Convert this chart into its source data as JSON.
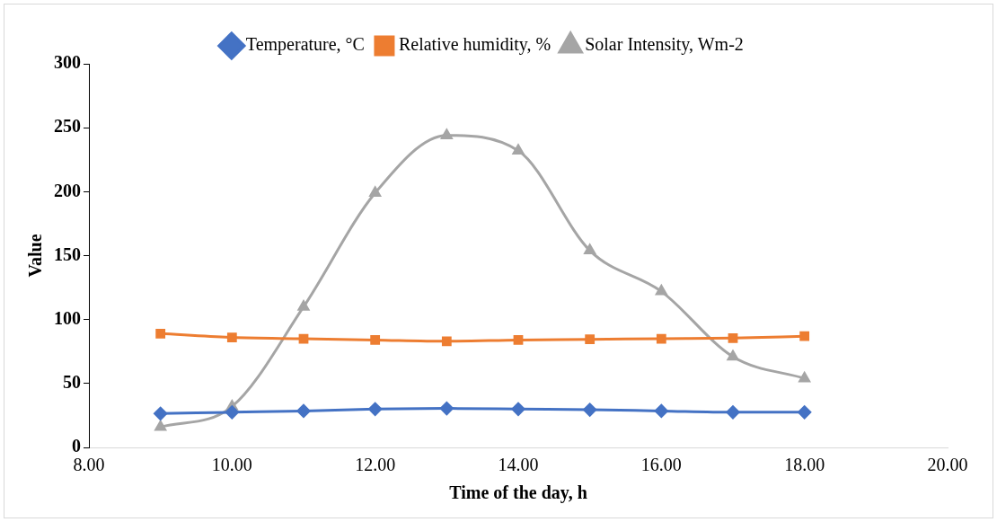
{
  "chart_data": {
    "type": "line",
    "xlabel": "Time of the day, h",
    "ylabel": "Value",
    "x": [
      9,
      10,
      11,
      12,
      13,
      14,
      15,
      16,
      17,
      18
    ],
    "series": [
      {
        "name": "Temperature, °C",
        "color": "#4472c4",
        "marker": "diamond",
        "values": [
          26.5,
          27.5,
          28.5,
          30,
          30.5,
          30,
          29.5,
          28.5,
          27.5,
          27.5
        ]
      },
      {
        "name": "Relative humidity, %",
        "color": "#ed7d31",
        "marker": "square",
        "values": [
          89,
          86,
          85,
          84,
          83,
          84,
          84.5,
          85,
          85.5,
          87
        ]
      },
      {
        "name": "Solar Intensity, Wm-2",
        "color": "#a5a5a5",
        "marker": "triangle",
        "values": [
          16,
          32,
          110,
          199,
          244,
          232,
          154,
          122,
          71,
          54
        ]
      }
    ],
    "xlim": [
      8,
      20
    ],
    "xticks": [
      {
        "value": 8,
        "label": "8.00"
      },
      {
        "value": 10,
        "label": "10.00"
      },
      {
        "value": 12,
        "label": "12.00"
      },
      {
        "value": 14,
        "label": "14.00"
      },
      {
        "value": 16,
        "label": "16.00"
      },
      {
        "value": 18,
        "label": "18.00"
      },
      {
        "value": 20,
        "label": "20.00"
      }
    ],
    "ylim": [
      0,
      300
    ],
    "yticks": [
      0,
      50,
      100,
      150,
      200,
      250,
      300
    ],
    "grid": false,
    "legend": "top",
    "line_style": "solid"
  }
}
